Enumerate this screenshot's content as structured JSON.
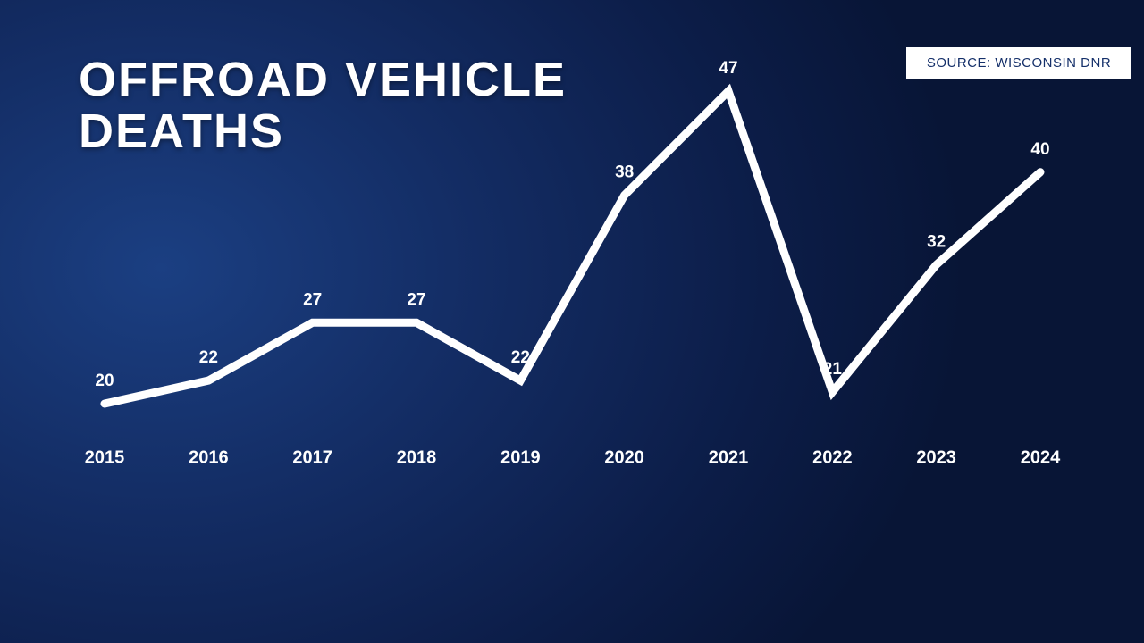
{
  "chart_data": {
    "type": "line",
    "title": "OFFROAD VEHICLE DEATHS",
    "source": "SOURCE: WISCONSIN DNR",
    "categories": [
      "2015",
      "2016",
      "2017",
      "2018",
      "2019",
      "2020",
      "2021",
      "2022",
      "2023",
      "2024"
    ],
    "values": [
      20,
      22,
      27,
      27,
      22,
      38,
      47,
      21,
      32,
      40
    ],
    "color": "#ffffff"
  }
}
